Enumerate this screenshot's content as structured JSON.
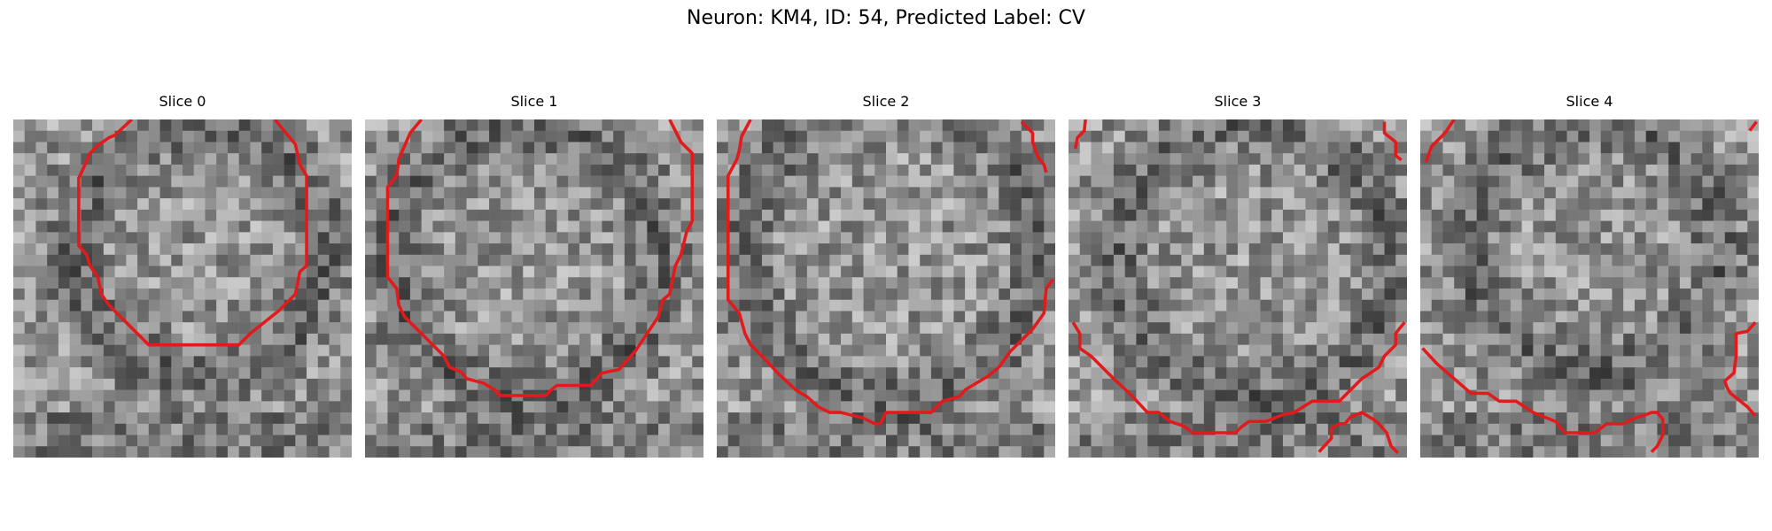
{
  "figure": {
    "title": "Neuron: KM4, ID: 54, Predicted Label: CV"
  },
  "panels": [
    {
      "title": "Slice 0"
    },
    {
      "title": "Slice 1"
    },
    {
      "title": "Slice 2"
    },
    {
      "title": "Slice 3"
    },
    {
      "title": "Slice 4"
    }
  ],
  "colors": {
    "contour": "#e31a1c",
    "background": "#ffffff",
    "colormap": "grayscale"
  }
}
